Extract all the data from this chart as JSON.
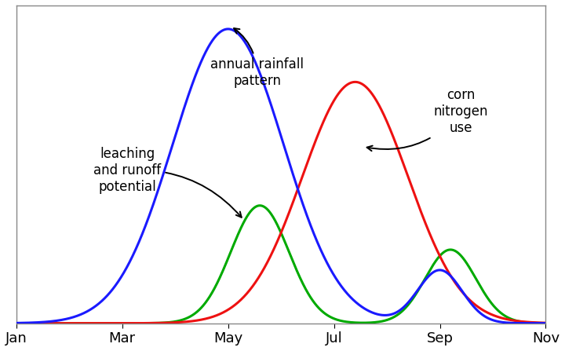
{
  "x_ticks": [
    1,
    3,
    5,
    7,
    9,
    11
  ],
  "x_tick_labels": [
    "Jan",
    "Mar",
    "May",
    "Jul",
    "Sep",
    "Nov"
  ],
  "xlim": [
    1,
    11
  ],
  "ylim": [
    0,
    1.08
  ],
  "background_color": "#ffffff",
  "blue_color": "#1a1aff",
  "red_color": "#ee1111",
  "green_color": "#00aa00",
  "annotation_rainfall": "annual rainfall\npattern",
  "annotation_corn": "corn\nnitrogen\nuse",
  "annotation_leaching": "leaching\nand runoff\npotential",
  "annotation_fontsize": 12,
  "linewidth": 2.2
}
